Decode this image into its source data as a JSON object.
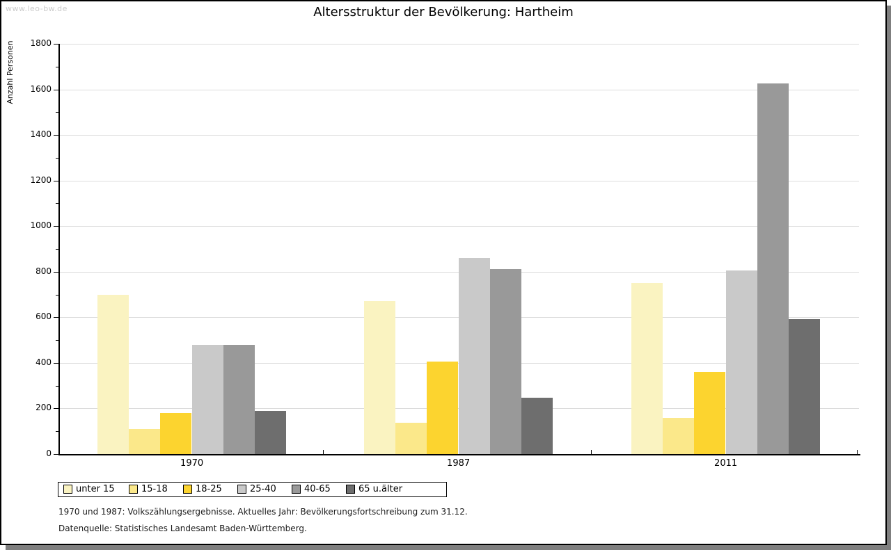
{
  "watermark": "www.leo-bw.de",
  "chart_data": {
    "type": "bar",
    "title": "Altersstruktur der Bevölkerung: Hartheim",
    "xlabel": "",
    "ylabel": "Anzahl Personen",
    "ylim": [
      0,
      1800
    ],
    "ytick_major_step": 200,
    "ytick_minor_step": 100,
    "grid": "horizontal-major",
    "legend_position": "bottom-left",
    "categories": [
      "1970",
      "1987",
      "2011"
    ],
    "series": [
      {
        "name": "unter 15",
        "color": "#FAF3C1",
        "values": [
          700,
          670,
          750
        ]
      },
      {
        "name": "15-18",
        "color": "#FBE88A",
        "values": [
          110,
          137,
          158
        ]
      },
      {
        "name": "18-25",
        "color": "#FCD42F",
        "values": [
          180,
          405,
          360
        ]
      },
      {
        "name": "25-40",
        "color": "#C9C9C9",
        "values": [
          478,
          860,
          806
        ]
      },
      {
        "name": "40-65",
        "color": "#999999",
        "values": [
          480,
          812,
          1626
        ]
      },
      {
        "name": "65 u.älter",
        "color": "#6E6E6E",
        "values": [
          190,
          248,
          592
        ]
      }
    ]
  },
  "footnotes": {
    "line1": "1970 und 1987: Volkszählungsergebnisse. Aktuelles Jahr: Bevölkerungsfortschreibung zum 31.12.",
    "line2": "Datenquelle: Statistisches Landesamt Baden-Württemberg."
  },
  "colors": {
    "shadow": "#7F7F7F",
    "gridline": "#DCDCDC",
    "axis": "#000000",
    "watermark_text": "#CBCBCB"
  }
}
